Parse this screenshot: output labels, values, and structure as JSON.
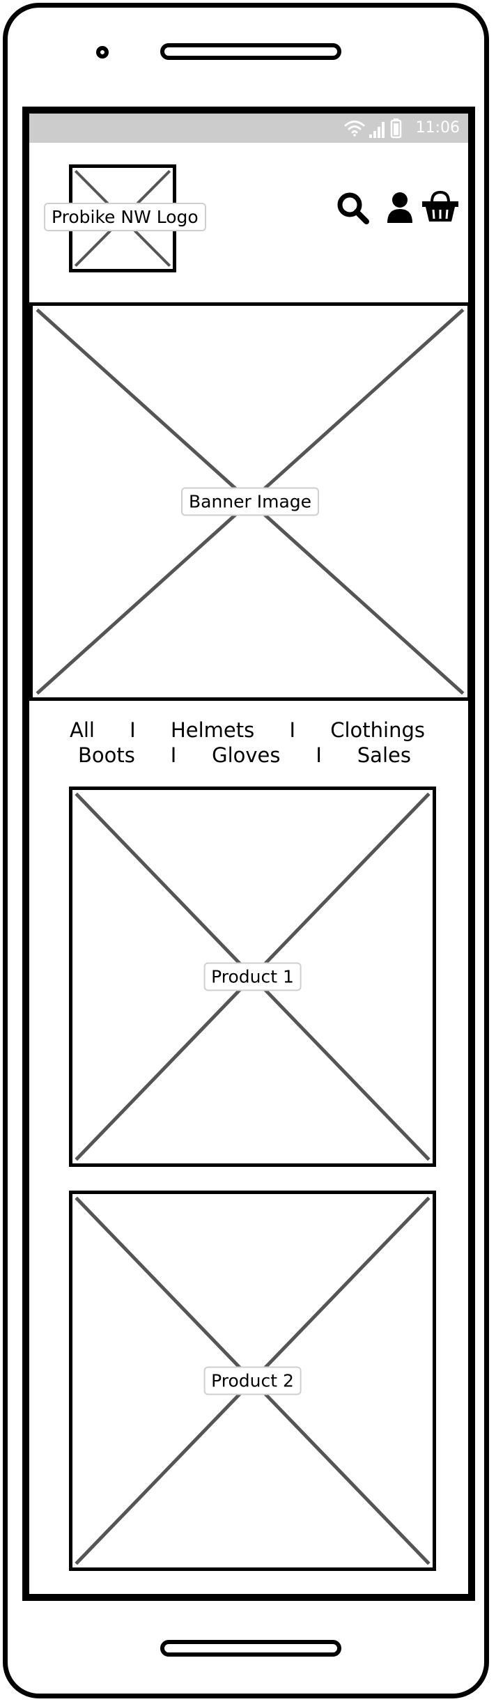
{
  "status_bar": {
    "time": "11:06",
    "icons": [
      "wifi-icon",
      "signal-icon",
      "battery-icon"
    ]
  },
  "header": {
    "logo_label": "Probike NW Logo",
    "icons": [
      "search-icon",
      "user-icon",
      "basket-icon"
    ]
  },
  "banner": {
    "label": "Banner Image"
  },
  "category_nav": {
    "row1": [
      "All",
      "Helmets",
      "Clothings"
    ],
    "row2": [
      "Boots",
      "Gloves",
      "Sales"
    ],
    "separator": "I"
  },
  "products": [
    {
      "label": "Product 1"
    },
    {
      "label": "Product 2"
    }
  ],
  "colors": {
    "status_bar": "#cccccc",
    "placeholder_line": "#555555",
    "frame": "#000000"
  }
}
